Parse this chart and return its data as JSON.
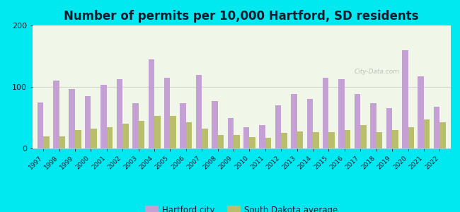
{
  "title": "Number of permits per 10,000 Hartford, SD residents",
  "years": [
    1997,
    1998,
    1999,
    2000,
    2001,
    2002,
    2003,
    2004,
    2005,
    2006,
    2007,
    2008,
    2009,
    2010,
    2011,
    2012,
    2013,
    2014,
    2015,
    2016,
    2017,
    2018,
    2019,
    2020,
    2021,
    2022
  ],
  "hartford": [
    75,
    110,
    97,
    85,
    103,
    113,
    73,
    145,
    115,
    73,
    120,
    77,
    50,
    35,
    38,
    70,
    88,
    80,
    115,
    113,
    88,
    73,
    65,
    160,
    117,
    68
  ],
  "sd_avg": [
    20,
    20,
    30,
    32,
    35,
    40,
    45,
    53,
    53,
    43,
    32,
    22,
    22,
    18,
    17,
    25,
    28,
    27,
    27,
    30,
    38,
    27,
    30,
    35,
    47,
    43
  ],
  "hartford_color": "#c4a0d4",
  "sd_avg_color": "#b8be6a",
  "ylim": [
    0,
    200
  ],
  "yticks": [
    0,
    100,
    200
  ],
  "outer_bg": "#00e8f0",
  "title_fontsize": 12,
  "title_color": "#1a1a2e",
  "legend_labels": [
    "Hartford city",
    "South Dakota average"
  ]
}
